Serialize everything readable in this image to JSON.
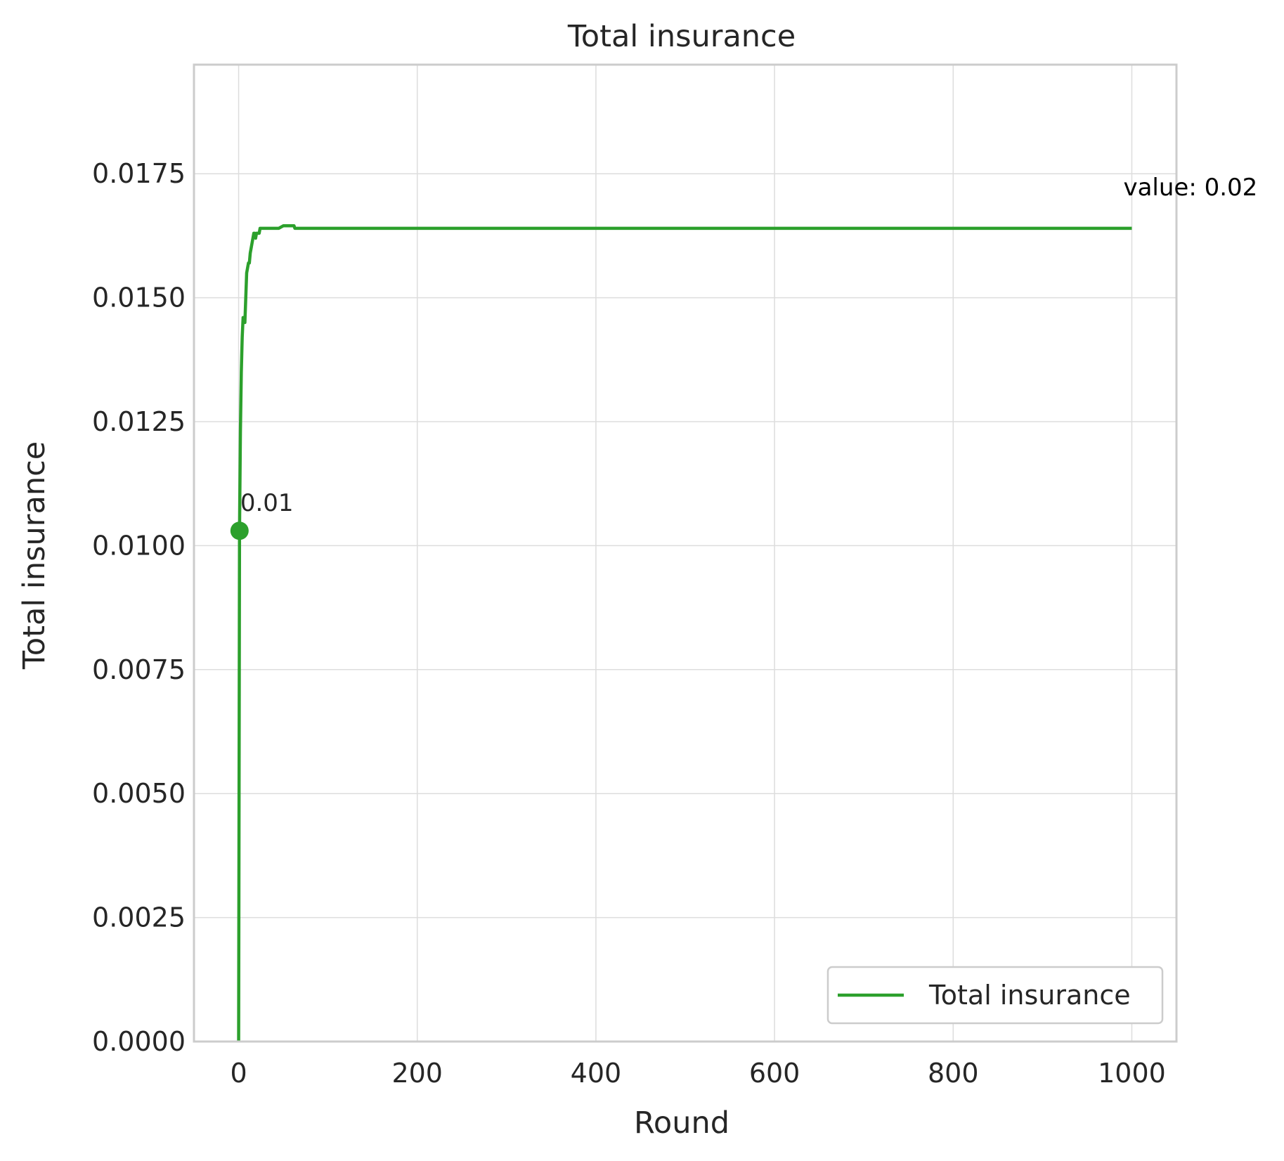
{
  "chart_data": {
    "type": "line",
    "title": "Total insurance",
    "xlabel": "Round",
    "ylabel": "Total insurance",
    "xlim": [
      -50,
      1050
    ],
    "ylim": [
      0,
      0.0197
    ],
    "x_ticks": [
      0,
      200,
      400,
      600,
      800,
      1000
    ],
    "x_tick_labels": [
      "0",
      "200",
      "400",
      "600",
      "800",
      "1000"
    ],
    "y_ticks": [
      0,
      0.0025,
      0.005,
      0.0075,
      0.01,
      0.0125,
      0.015,
      0.0175
    ],
    "y_tick_labels": [
      "0.0000",
      "0.0025",
      "0.0050",
      "0.0075",
      "0.0100",
      "0.0125",
      "0.0150",
      "0.0175"
    ],
    "grid": true,
    "legend_position": "lower-right",
    "series": [
      {
        "name": "Total insurance",
        "color": "#2ca02c",
        "x": [
          0,
          1,
          2,
          3,
          4,
          5,
          6,
          7,
          8,
          9,
          10,
          11,
          12,
          13,
          14,
          15,
          16,
          17,
          18,
          19,
          20,
          23,
          24,
          25,
          30,
          40,
          45,
          50,
          55,
          60,
          62,
          63,
          65,
          100,
          200,
          400,
          600,
          800,
          1000
        ],
        "y": [
          0,
          0.0103,
          0.0123,
          0.0135,
          0.0142,
          0.0146,
          0.0146,
          0.0145,
          0.015,
          0.0155,
          0.0156,
          0.0157,
          0.0157,
          0.0159,
          0.016,
          0.0161,
          0.0162,
          0.0163,
          0.0163,
          0.0162,
          0.0163,
          0.0163,
          0.0164,
          0.0164,
          0.0164,
          0.0164,
          0.0164,
          0.01645,
          0.01645,
          0.01645,
          0.01645,
          0.0164,
          0.0164,
          0.0164,
          0.0164,
          0.0164,
          0.0164,
          0.0164,
          0.0164
        ]
      }
    ],
    "highlight_point": {
      "x": 1,
      "y": 0.0103
    },
    "annotations": [
      {
        "text": "0.01",
        "x": 1,
        "y": 0.0103
      },
      {
        "text": "value: 0.02",
        "x": 1000,
        "y": 0.0164
      }
    ]
  }
}
